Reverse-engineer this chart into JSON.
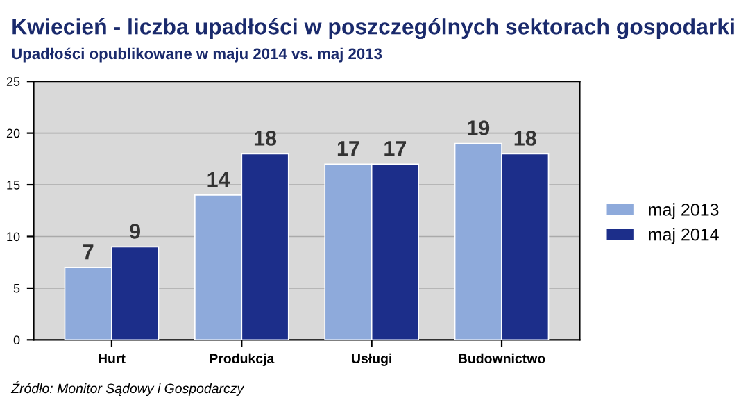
{
  "chart_data": {
    "type": "bar",
    "title": "Kwiecień - liczba upadłości w poszczególnych sektorach gospodarki",
    "subtitle": "Upadłości opublikowane w maju 2014 vs. maj 2013",
    "categories": [
      "Hurt",
      "Produkcja",
      "Usługi",
      "Budownictwo"
    ],
    "series": [
      {
        "name": "maj 2013",
        "color": "#8eaadb",
        "values": [
          7,
          14,
          17,
          19
        ]
      },
      {
        "name": "maj 2014",
        "color": "#1c2e8a",
        "values": [
          9,
          18,
          17,
          18
        ]
      }
    ],
    "ylim": [
      0,
      25
    ],
    "yticks": [
      0,
      5,
      10,
      15,
      20,
      25
    ],
    "grid": "y",
    "legend": "right",
    "data_labels": true,
    "annotations": [
      "Źródło: Monitor Sądowy i Gospodarczy"
    ]
  }
}
